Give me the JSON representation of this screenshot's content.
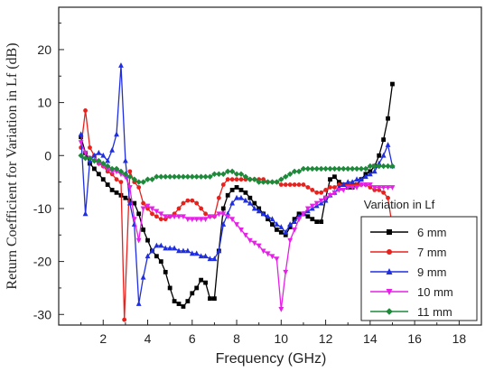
{
  "chart_data": {
    "type": "line",
    "title": "",
    "xlabel": "Frequency (GHz)",
    "ylabel": "Return Coefficient for Variation in Lf (dB)",
    "xlim": [
      0,
      19
    ],
    "ylim": [
      -32,
      28
    ],
    "xticks": [
      2,
      4,
      6,
      8,
      10,
      12,
      14,
      16,
      18
    ],
    "yticks": [
      -30,
      -20,
      -10,
      0,
      10,
      20
    ],
    "grid": false,
    "legend": {
      "title": "Variation in Lf",
      "placement": "right"
    },
    "series": [
      {
        "name": "6 mm",
        "color": "#000000",
        "marker": "square",
        "x": [
          1.0,
          1.2,
          1.4,
          1.6,
          1.8,
          2.0,
          2.2,
          2.4,
          2.6,
          2.8,
          3.0,
          3.2,
          3.4,
          3.6,
          3.8,
          4.0,
          4.2,
          4.4,
          4.6,
          4.8,
          5.0,
          5.2,
          5.4,
          5.6,
          5.8,
          6.0,
          6.2,
          6.4,
          6.6,
          6.8,
          7.0,
          7.2,
          7.4,
          7.6,
          7.8,
          8.0,
          8.2,
          8.4,
          8.6,
          8.8,
          9.0,
          9.2,
          9.4,
          9.6,
          9.8,
          10.0,
          10.2,
          10.4,
          10.6,
          10.8,
          11.0,
          11.2,
          11.4,
          11.6,
          11.8,
          12.0,
          12.2,
          12.4,
          12.6,
          12.8,
          13.0,
          13.2,
          13.4,
          13.6,
          13.8,
          14.0,
          14.2,
          14.4,
          14.6,
          14.8,
          15.0
        ],
        "y": [
          3.5,
          0.5,
          -1.5,
          -2.5,
          -3.5,
          -4.5,
          -5.5,
          -6.5,
          -7.0,
          -7.5,
          -8.0,
          -8.5,
          -9.0,
          -11.0,
          -14.0,
          -16.0,
          -18.0,
          -19.0,
          -20.0,
          -22.0,
          -25.0,
          -27.5,
          -28.0,
          -28.5,
          -27.5,
          -26.0,
          -25.0,
          -23.5,
          -24.0,
          -27.0,
          -27.0,
          -18.0,
          -10.0,
          -7.5,
          -6.5,
          -6.0,
          -6.5,
          -7.0,
          -8.0,
          -9.0,
          -10.0,
          -11.0,
          -12.0,
          -13.0,
          -14.0,
          -14.5,
          -15.0,
          -13.5,
          -12.0,
          -11.0,
          -11.0,
          -11.5,
          -12.0,
          -12.5,
          -12.5,
          -8.0,
          -4.5,
          -4.0,
          -5.0,
          -5.5,
          -6.0,
          -6.0,
          -5.5,
          -4.5,
          -3.5,
          -3.0,
          -2.0,
          0.0,
          3.0,
          7.0,
          13.5
        ]
      },
      {
        "name": "7 mm",
        "color": "#e8211d",
        "marker": "circle",
        "x": [
          1.0,
          1.2,
          1.4,
          1.6,
          1.8,
          2.0,
          2.2,
          2.4,
          2.6,
          2.8,
          2.95,
          3.2,
          3.4,
          3.6,
          3.8,
          4.0,
          4.2,
          4.4,
          4.6,
          4.8,
          5.0,
          5.2,
          5.4,
          5.6,
          5.8,
          6.0,
          6.2,
          6.4,
          6.6,
          6.8,
          7.0,
          7.2,
          7.4,
          7.6,
          7.8,
          8.0,
          8.2,
          8.4,
          8.6,
          8.8,
          9.0,
          9.2,
          9.4,
          9.6,
          9.8,
          10.0,
          10.2,
          10.4,
          10.6,
          10.8,
          11.0,
          11.2,
          11.4,
          11.6,
          11.8,
          12.0,
          12.2,
          12.4,
          12.6,
          12.8,
          13.0,
          13.2,
          13.4,
          13.6,
          13.8,
          14.0,
          14.2,
          14.4,
          14.6,
          14.8,
          15.0
        ],
        "y": [
          1.5,
          8.5,
          1.5,
          0.0,
          -1.5,
          -2.0,
          -3.0,
          -3.5,
          -4.5,
          -5.0,
          -31.0,
          -3.0,
          -5.0,
          -6.0,
          -9.0,
          -10.0,
          -11.0,
          -11.5,
          -12.0,
          -12.0,
          -11.5,
          -11.0,
          -10.0,
          -9.0,
          -8.5,
          -8.5,
          -9.0,
          -10.0,
          -11.0,
          -11.5,
          -11.5,
          -8.0,
          -5.5,
          -4.5,
          -4.5,
          -4.5,
          -4.5,
          -4.5,
          -4.5,
          -4.5,
          -4.5,
          -4.5,
          -5.0,
          -5.0,
          -5.0,
          -5.5,
          -5.5,
          -5.5,
          -5.5,
          -5.5,
          -5.5,
          -6.0,
          -6.5,
          -7.0,
          -7.0,
          -6.5,
          -6.0,
          -6.0,
          -5.5,
          -5.5,
          -5.5,
          -5.5,
          -5.5,
          -5.5,
          -5.5,
          -6.0,
          -6.5,
          -6.5,
          -7.0,
          -8.0,
          -13.5
        ]
      },
      {
        "name": "9 mm",
        "color": "#1f2ee0",
        "marker": "triangle-up",
        "x": [
          1.0,
          1.2,
          1.4,
          1.6,
          1.8,
          2.0,
          2.2,
          2.4,
          2.6,
          2.8,
          3.0,
          3.2,
          3.4,
          3.6,
          3.8,
          4.0,
          4.2,
          4.4,
          4.6,
          4.8,
          5.0,
          5.2,
          5.4,
          5.6,
          5.8,
          6.0,
          6.2,
          6.4,
          6.6,
          6.8,
          7.0,
          7.2,
          7.4,
          7.6,
          7.8,
          8.0,
          8.2,
          8.4,
          8.6,
          8.8,
          9.0,
          9.2,
          9.4,
          9.6,
          9.8,
          10.0,
          10.2,
          10.4,
          10.6,
          10.8,
          11.0,
          11.2,
          11.4,
          11.6,
          11.8,
          12.0,
          12.2,
          12.4,
          12.6,
          12.8,
          13.0,
          13.2,
          13.4,
          13.6,
          13.8,
          14.0,
          14.2,
          14.4,
          14.6,
          14.8,
          15.0
        ],
        "y": [
          4.0,
          -11.0,
          -1.0,
          0.0,
          0.5,
          0.0,
          -1.0,
          1.0,
          4.0,
          17.0,
          -1.0,
          -9.0,
          -13.0,
          -28.0,
          -23.0,
          -19.0,
          -18.0,
          -17.0,
          -17.0,
          -17.5,
          -17.5,
          -17.5,
          -18.0,
          -18.0,
          -18.0,
          -18.5,
          -18.5,
          -19.0,
          -19.0,
          -19.5,
          -19.5,
          -18.0,
          -13.0,
          -11.0,
          -9.0,
          -8.0,
          -8.0,
          -8.5,
          -9.0,
          -10.0,
          -10.5,
          -11.0,
          -11.5,
          -12.0,
          -13.0,
          -13.5,
          -14.5,
          -13.0,
          -12.5,
          -11.5,
          -11.0,
          -10.5,
          -10.0,
          -9.5,
          -9.0,
          -8.5,
          -7.5,
          -7.0,
          -6.0,
          -5.5,
          -5.0,
          -5.0,
          -4.5,
          -4.5,
          -4.0,
          -3.5,
          -3.0,
          -1.5,
          0.0,
          2.0,
          -2.0
        ]
      },
      {
        "name": "10 mm",
        "color": "#e620e6",
        "marker": "triangle-down",
        "x": [
          1.0,
          1.2,
          1.4,
          1.6,
          1.8,
          2.0,
          2.2,
          2.4,
          2.6,
          2.8,
          3.0,
          3.2,
          3.4,
          3.6,
          3.8,
          4.0,
          4.2,
          4.4,
          4.6,
          4.8,
          5.0,
          5.2,
          5.4,
          5.6,
          5.8,
          6.0,
          6.2,
          6.4,
          6.6,
          6.8,
          7.0,
          7.2,
          7.4,
          7.6,
          7.8,
          8.0,
          8.2,
          8.4,
          8.6,
          8.8,
          9.0,
          9.2,
          9.4,
          9.6,
          9.8,
          10.0,
          10.2,
          10.4,
          10.6,
          10.8,
          11.0,
          11.2,
          11.4,
          11.6,
          11.8,
          12.0,
          12.2,
          12.4,
          12.6,
          12.8,
          13.0,
          13.2,
          13.4,
          13.6,
          13.8,
          14.0,
          14.2,
          14.4,
          14.6,
          14.8,
          15.0
        ],
        "y": [
          2.5,
          0.5,
          -0.5,
          -1.0,
          -1.5,
          -2.0,
          -2.5,
          -3.0,
          -3.0,
          -3.5,
          -4.0,
          -6.0,
          -12.0,
          -16.0,
          -10.0,
          -9.5,
          -10.0,
          -10.5,
          -11.0,
          -11.5,
          -11.5,
          -11.5,
          -11.5,
          -11.5,
          -12.0,
          -12.0,
          -12.0,
          -12.0,
          -12.0,
          -11.5,
          -11.5,
          -11.0,
          -11.0,
          -11.5,
          -12.0,
          -13.0,
          -14.0,
          -15.0,
          -16.0,
          -16.5,
          -17.0,
          -18.0,
          -18.5,
          -19.0,
          -19.5,
          -29.0,
          -22.0,
          -16.0,
          -14.0,
          -12.0,
          -11.0,
          -10.0,
          -9.5,
          -9.0,
          -8.5,
          -8.0,
          -7.5,
          -7.0,
          -6.5,
          -6.5,
          -6.0,
          -6.0,
          -6.0,
          -5.5,
          -5.5,
          -5.5,
          -6.0,
          -6.0,
          -6.0,
          -6.0,
          -6.0
        ]
      },
      {
        "name": "11 mm",
        "color": "#1d8a3a",
        "marker": "diamond",
        "x": [
          1.0,
          1.2,
          1.4,
          1.6,
          1.8,
          2.0,
          2.2,
          2.4,
          2.6,
          2.8,
          3.0,
          3.2,
          3.4,
          3.6,
          3.8,
          4.0,
          4.2,
          4.4,
          4.6,
          4.8,
          5.0,
          5.2,
          5.4,
          5.6,
          5.8,
          6.0,
          6.2,
          6.4,
          6.6,
          6.8,
          7.0,
          7.2,
          7.4,
          7.6,
          7.8,
          8.0,
          8.2,
          8.4,
          8.6,
          8.8,
          9.0,
          9.2,
          9.4,
          9.6,
          9.8,
          10.0,
          10.2,
          10.4,
          10.6,
          10.8,
          11.0,
          11.2,
          11.4,
          11.6,
          11.8,
          12.0,
          12.2,
          12.4,
          12.6,
          12.8,
          13.0,
          13.2,
          13.4,
          13.6,
          13.8,
          14.0,
          14.2,
          14.4,
          14.6,
          14.8,
          15.0
        ],
        "y": [
          0.0,
          -0.5,
          -0.5,
          -1.0,
          -1.0,
          -1.5,
          -2.0,
          -2.5,
          -2.5,
          -3.0,
          -3.5,
          -4.0,
          -4.5,
          -5.0,
          -5.0,
          -4.5,
          -4.5,
          -4.0,
          -4.0,
          -4.0,
          -4.0,
          -4.0,
          -4.0,
          -4.0,
          -4.0,
          -4.0,
          -4.0,
          -4.0,
          -4.0,
          -4.0,
          -3.5,
          -3.5,
          -3.5,
          -3.0,
          -3.0,
          -3.5,
          -3.5,
          -4.0,
          -4.5,
          -4.5,
          -5.0,
          -5.0,
          -5.0,
          -5.0,
          -5.0,
          -4.5,
          -4.0,
          -3.5,
          -3.0,
          -3.0,
          -2.5,
          -2.5,
          -2.5,
          -2.5,
          -2.5,
          -2.5,
          -2.5,
          -2.5,
          -2.5,
          -2.5,
          -2.5,
          -2.5,
          -2.5,
          -2.5,
          -2.5,
          -2.0,
          -2.0,
          -2.0,
          -2.0,
          -2.0,
          -2.0
        ]
      }
    ]
  }
}
